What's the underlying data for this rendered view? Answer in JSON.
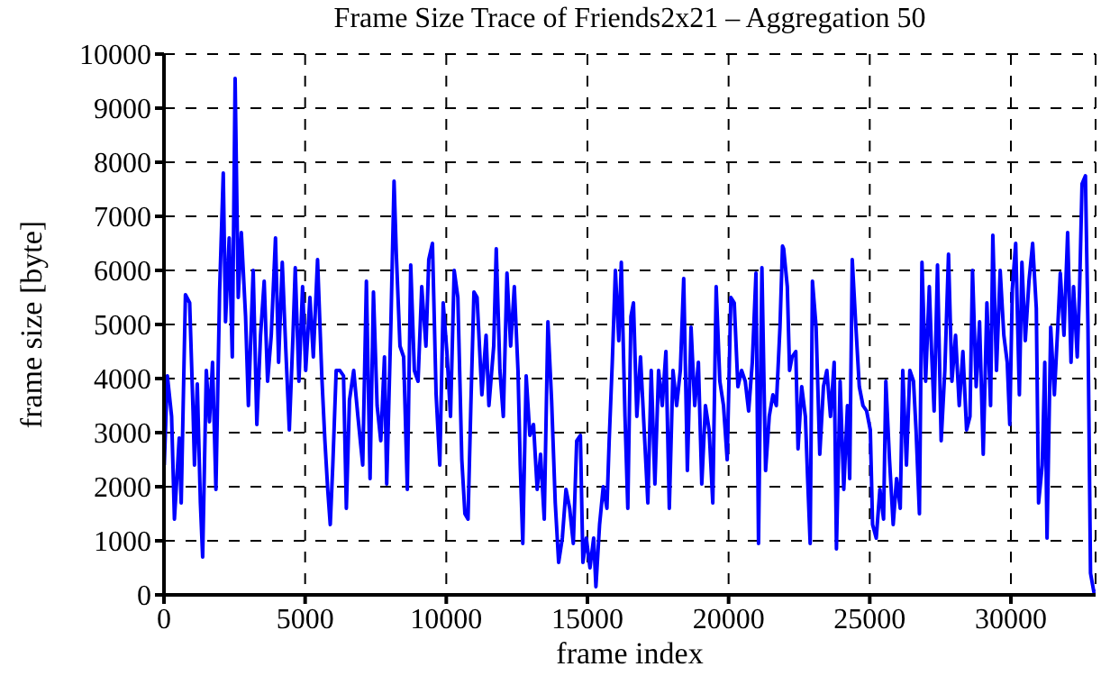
{
  "chart_data": {
    "type": "line",
    "title": "Frame Size Trace of Friends2x21 – Aggregation 50",
    "xlabel": "frame index",
    "ylabel": "frame size [byte]",
    "xlim": [
      0,
      33000
    ],
    "xticks": [
      0,
      5000,
      10000,
      15000,
      20000,
      25000,
      30000
    ],
    "ylim": [
      0,
      10000
    ],
    "yticks": [
      0,
      1000,
      2000,
      3000,
      4000,
      5000,
      6000,
      7000,
      8000,
      9000,
      10000
    ],
    "grid": true,
    "legend": false,
    "marker": "none",
    "line_style": "solid",
    "series": [
      {
        "color": "#0000ff",
        "x": [
          10,
          120,
          270,
          370,
          540,
          610,
          760,
          910,
          1030,
          1080,
          1180,
          1290,
          1370,
          1500,
          1610,
          1720,
          1840,
          1970,
          2100,
          2180,
          2310,
          2420,
          2520,
          2630,
          2740,
          2890,
          2990,
          3160,
          3290,
          3420,
          3550,
          3670,
          3800,
          3950,
          4060,
          4190,
          4310,
          4440,
          4570,
          4650,
          4780,
          4910,
          5020,
          5170,
          5290,
          5440,
          5590,
          5700,
          5800,
          5890,
          5980,
          6100,
          6230,
          6360,
          6460,
          6570,
          6720,
          6870,
          7040,
          7170,
          7300,
          7420,
          7550,
          7680,
          7810,
          7890,
          8040,
          8150,
          8230,
          8360,
          8490,
          8620,
          8740,
          8870,
          9000,
          9130,
          9280,
          9380,
          9510,
          9640,
          9770,
          9890,
          10020,
          10150,
          10280,
          10410,
          10550,
          10660,
          10770,
          10870,
          10980,
          11090,
          11260,
          11410,
          11510,
          11680,
          11770,
          11900,
          12020,
          12150,
          12280,
          12410,
          12540,
          12620,
          12710,
          12830,
          12960,
          13090,
          13220,
          13340,
          13470,
          13600,
          13730,
          13860,
          13980,
          14110,
          14240,
          14370,
          14500,
          14620,
          14750,
          14840,
          14960,
          15090,
          15220,
          15300,
          15430,
          15560,
          15690,
          15770,
          15880,
          15990,
          16110,
          16200,
          16330,
          16430,
          16540,
          16630,
          16750,
          16880,
          17010,
          17140,
          17260,
          17390,
          17520,
          17650,
          17780,
          17900,
          18030,
          18160,
          18290,
          18410,
          18540,
          18670,
          18800,
          18930,
          19050,
          19180,
          19310,
          19440,
          19560,
          19690,
          19820,
          19950,
          20080,
          20200,
          20330,
          20460,
          20590,
          20710,
          20840,
          20970,
          21060,
          21180,
          21310,
          21440,
          21570,
          21690,
          21820,
          21910,
          21950,
          22080,
          22160,
          22250,
          22380,
          22460,
          22590,
          22720,
          22800,
          22890,
          22970,
          23100,
          23230,
          23360,
          23480,
          23610,
          23740,
          23820,
          23950,
          24080,
          24210,
          24290,
          24380,
          24510,
          24630,
          24760,
          24890,
          25020,
          25100,
          25230,
          25360,
          25490,
          25570,
          25700,
          25830,
          25950,
          26080,
          26170,
          26300,
          26420,
          26550,
          26640,
          26760,
          26850,
          26980,
          27110,
          27190,
          27280,
          27400,
          27530,
          27660,
          27790,
          27910,
          28040,
          28170,
          28300,
          28430,
          28550,
          28640,
          28770,
          28890,
          29020,
          29150,
          29280,
          29360,
          29490,
          29620,
          29750,
          29870,
          29960,
          30050,
          30170,
          30300,
          30390,
          30510,
          30640,
          30770,
          30900,
          30980,
          31110,
          31200,
          31280,
          31410,
          31540,
          31660,
          31750,
          31880,
          32010,
          32130,
          32220,
          32350,
          32430,
          32520,
          32640,
          32730,
          32820,
          32940,
          32990
        ],
        "values": [
          2400,
          4050,
          3300,
          1400,
          2900,
          1700,
          5550,
          5400,
          3400,
          2400,
          3900,
          1700,
          700,
          4150,
          3200,
          4300,
          1950,
          5600,
          7800,
          5050,
          6600,
          4400,
          9550,
          5500,
          6700,
          5150,
          3500,
          6000,
          3150,
          4800,
          5800,
          3950,
          4800,
          6600,
          4300,
          6150,
          4600,
          3050,
          4800,
          6050,
          3950,
          5700,
          4150,
          5500,
          4400,
          6200,
          4050,
          2850,
          1950,
          1300,
          2400,
          4150,
          4150,
          4050,
          1600,
          3600,
          4150,
          3300,
          2400,
          5800,
          2150,
          5600,
          3500,
          2850,
          4400,
          2050,
          5050,
          7650,
          6300,
          4600,
          4400,
          1950,
          6100,
          4150,
          3950,
          5700,
          4600,
          6200,
          6500,
          3700,
          2400,
          5400,
          4500,
          3300,
          6000,
          5500,
          2500,
          1500,
          1400,
          3500,
          5600,
          5500,
          3700,
          4800,
          3500,
          4600,
          6400,
          4150,
          3300,
          5950,
          4600,
          5700,
          4150,
          2400,
          950,
          4050,
          2950,
          3150,
          1950,
          2600,
          1400,
          5050,
          3600,
          1700,
          600,
          1050,
          1950,
          1600,
          950,
          2850,
          2950,
          600,
          1050,
          500,
          1050,
          150,
          1300,
          2000,
          1600,
          2850,
          4300,
          6000,
          4700,
          6150,
          3300,
          1600,
          5150,
          5400,
          3300,
          4400,
          3050,
          1700,
          4150,
          2050,
          4150,
          3500,
          4500,
          1600,
          4150,
          3500,
          4150,
          5850,
          2300,
          4950,
          3500,
          4300,
          2050,
          3500,
          3050,
          1700,
          5700,
          3950,
          3500,
          2500,
          5500,
          5400,
          3850,
          4150,
          3950,
          3400,
          4300,
          5950,
          950,
          6050,
          2300,
          3300,
          3700,
          3500,
          4950,
          6450,
          6400,
          5700,
          4150,
          4400,
          4500,
          2700,
          3850,
          3300,
          2150,
          950,
          5800,
          4950,
          2600,
          3850,
          4150,
          3300,
          4300,
          850,
          3950,
          1950,
          3500,
          2150,
          6200,
          4950,
          3850,
          3500,
          3400,
          3050,
          1300,
          1050,
          1950,
          1400,
          3950,
          2500,
          1300,
          2150,
          1600,
          4150,
          2400,
          4150,
          3950,
          3050,
          1500,
          6150,
          3950,
          5700,
          4500,
          3400,
          6100,
          2850,
          4150,
          6300,
          3950,
          4800,
          3500,
          4500,
          3050,
          3300,
          6000,
          3850,
          5050,
          2600,
          5400,
          3500,
          6650,
          4150,
          6000,
          4800,
          4300,
          3150,
          5650,
          6500,
          3700,
          6150,
          4700,
          5800,
          6500,
          5300,
          1700,
          2400,
          4300,
          1050,
          4950,
          3700,
          4950,
          5950,
          4800,
          6700,
          4300,
          5700,
          4400,
          5600,
          7600,
          7750,
          4950,
          400,
          50,
          100
        ]
      }
    ]
  }
}
